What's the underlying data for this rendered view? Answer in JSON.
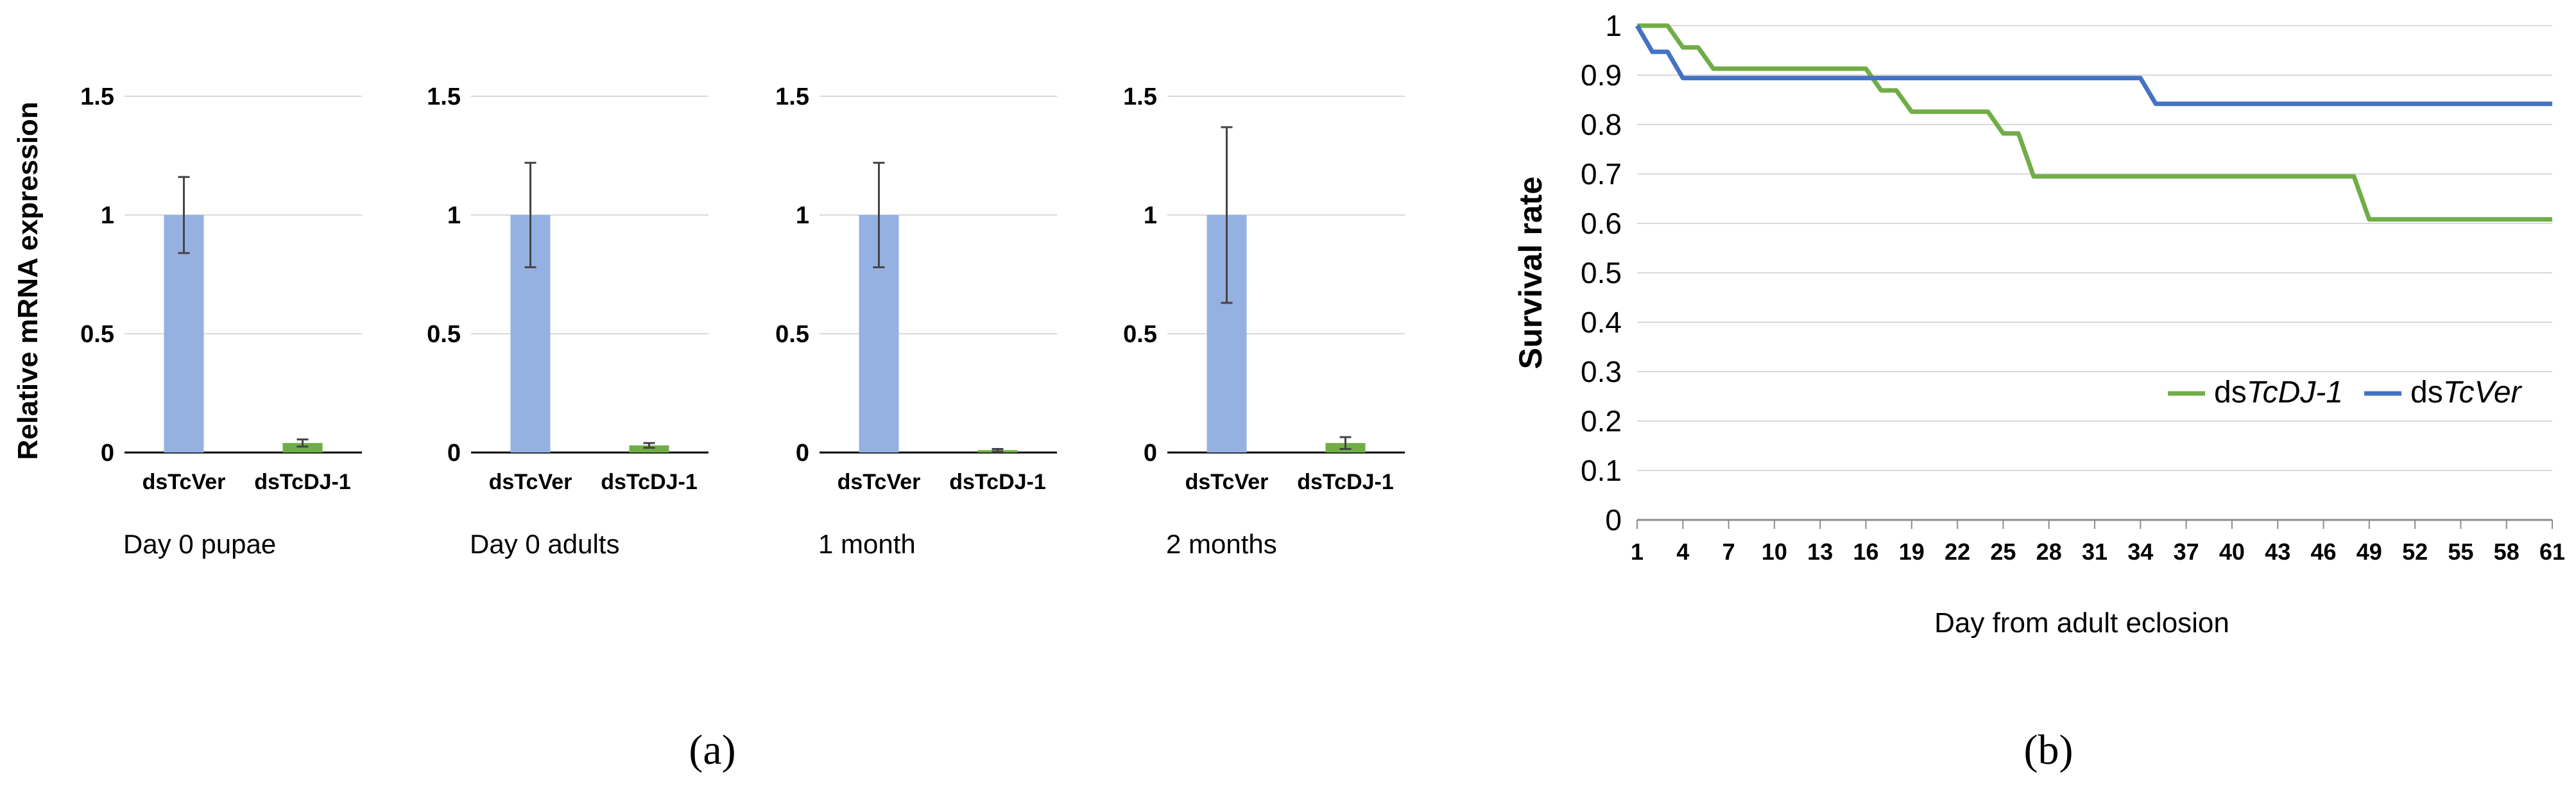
{
  "chart_data": [
    {
      "type": "bar",
      "ylabel": "Relative mRNA expression",
      "subtitle": "Day 0 pupae",
      "categories": [
        "dsTcVer",
        "dsTcDJ-1"
      ],
      "values": [
        1.0,
        0.04
      ],
      "error": [
        0.16,
        0.015
      ],
      "ylim": [
        0,
        1.5
      ],
      "yticks": [
        "0",
        "0.5",
        "1",
        "1.5"
      ],
      "colors": [
        "#95b1e1",
        "#70ad47"
      ],
      "grid": true
    },
    {
      "type": "bar",
      "subtitle": "Day 0 adults",
      "categories": [
        "dsTcVer",
        "dsTcDJ-1"
      ],
      "values": [
        1.0,
        0.03
      ],
      "error": [
        0.22,
        0.01
      ],
      "ylim": [
        0,
        1.5
      ],
      "yticks": [
        "0",
        "0.5",
        "1",
        "1.5"
      ],
      "colors": [
        "#95b1e1",
        "#70ad47"
      ],
      "grid": true
    },
    {
      "type": "bar",
      "subtitle": "1 month",
      "categories": [
        "dsTcVer",
        "dsTcDJ-1"
      ],
      "values": [
        1.0,
        0.01
      ],
      "error": [
        0.22,
        0.005
      ],
      "ylim": [
        0,
        1.5
      ],
      "yticks": [
        "0",
        "0.5",
        "1",
        "1.5"
      ],
      "colors": [
        "#95b1e1",
        "#70ad47"
      ],
      "grid": true
    },
    {
      "type": "bar",
      "subtitle": "2 months",
      "categories": [
        "dsTcVer",
        "dsTcDJ-1"
      ],
      "values": [
        1.0,
        0.04
      ],
      "error": [
        0.37,
        0.025
      ],
      "ylim": [
        0,
        1.5
      ],
      "yticks": [
        "0",
        "0.5",
        "1",
        "1.5"
      ],
      "colors": [
        "#95b1e1",
        "#70ad47"
      ],
      "grid": true
    },
    {
      "type": "line",
      "xlabel": "Day from adult eclosion",
      "ylabel": "Survival rate",
      "xlim": [
        1,
        61
      ],
      "ylim": [
        0,
        1
      ],
      "xticks": [
        "1",
        "4",
        "7",
        "10",
        "13",
        "16",
        "19",
        "22",
        "25",
        "28",
        "31",
        "34",
        "37",
        "40",
        "43",
        "46",
        "49",
        "52",
        "55",
        "58",
        "61"
      ],
      "yticks": [
        "0",
        "0.1",
        "0.2",
        "0.3",
        "0.4",
        "0.5",
        "0.6",
        "0.7",
        "0.8",
        "0.9",
        "1"
      ],
      "legend_position": "center-right",
      "grid": true,
      "series": [
        {
          "name_prefix": "ds",
          "name_italic": "TcDJ-1",
          "color": "#70ad47",
          "points": [
            [
              1,
              1
            ],
            [
              3,
              1
            ],
            [
              4,
              0.956
            ],
            [
              5,
              0.956
            ],
            [
              6,
              0.913
            ],
            [
              16,
              0.913
            ],
            [
              17,
              0.869
            ],
            [
              18,
              0.869
            ],
            [
              19,
              0.826
            ],
            [
              24,
              0.826
            ],
            [
              25,
              0.782
            ],
            [
              26,
              0.782
            ],
            [
              27,
              0.695
            ],
            [
              48,
              0.695
            ],
            [
              49,
              0.608
            ],
            [
              61,
              0.608
            ]
          ]
        },
        {
          "name_prefix": "ds",
          "name_italic": "TcVer",
          "color": "#4472c4",
          "points": [
            [
              1,
              1
            ],
            [
              2,
              0.947
            ],
            [
              3,
              0.947
            ],
            [
              4,
              0.894
            ],
            [
              34,
              0.894
            ],
            [
              35,
              0.842
            ],
            [
              61,
              0.842
            ]
          ]
        }
      ]
    }
  ],
  "panel_labels": [
    "(a)",
    "(b)"
  ]
}
